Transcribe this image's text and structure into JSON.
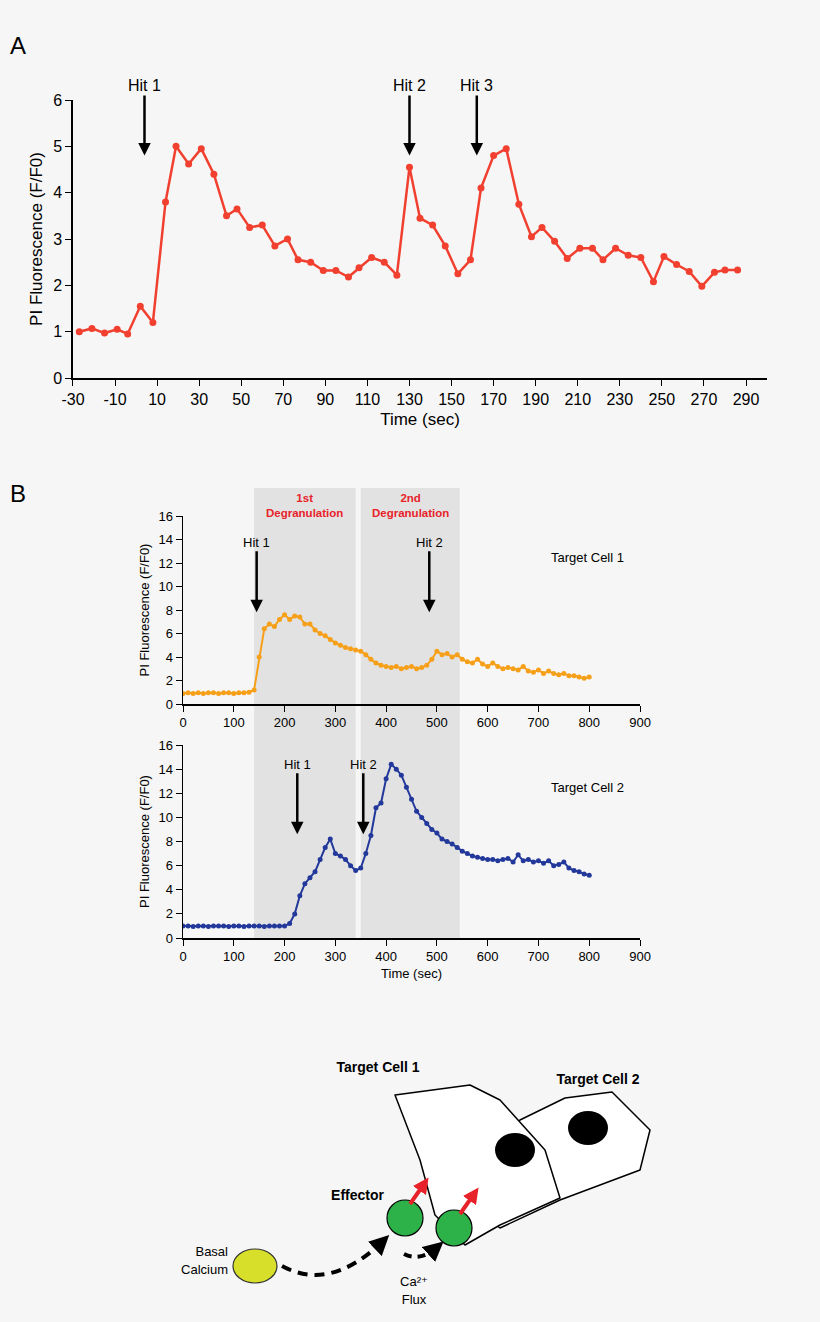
{
  "chart_data": [
    {
      "type": "line",
      "panel_label": "A",
      "marker": "circle",
      "grid": false,
      "xlabel": "Time (sec)",
      "ylabel": "PI Fluorescence (F/F0)",
      "xlim": [
        -30,
        300
      ],
      "xticks": [
        -30,
        -10,
        10,
        30,
        50,
        70,
        90,
        110,
        130,
        150,
        170,
        190,
        210,
        230,
        250,
        270,
        290
      ],
      "ylim": [
        0,
        6
      ],
      "yticks": [
        0,
        1,
        2,
        3,
        4,
        5,
        6
      ],
      "x": [
        -27,
        -21,
        -15,
        -9,
        -4,
        2,
        8,
        14,
        19,
        25,
        31,
        37,
        43,
        48,
        54,
        60,
        66,
        72,
        77,
        83,
        89,
        95,
        101,
        106,
        112,
        118,
        124,
        130,
        135,
        141,
        147,
        153,
        159,
        164,
        170,
        176,
        182,
        188,
        193,
        199,
        205,
        211,
        217,
        222,
        228,
        234,
        240,
        246,
        251,
        257,
        263,
        269,
        275,
        280,
        286
      ],
      "series": [
        {
          "color": "#f1402f",
          "values": [
            1.0,
            1.07,
            0.97,
            1.05,
            0.95,
            1.55,
            1.2,
            3.8,
            5.0,
            4.62,
            4.95,
            4.4,
            3.5,
            3.65,
            3.25,
            3.3,
            2.85,
            3.0,
            2.55,
            2.5,
            2.32,
            2.32,
            2.18,
            2.38,
            2.6,
            2.5,
            2.22,
            4.55,
            3.45,
            3.3,
            2.85,
            2.25,
            2.55,
            4.1,
            4.8,
            4.95,
            3.75,
            3.05,
            3.25,
            2.95,
            2.58,
            2.8,
            2.8,
            2.55,
            2.8,
            2.65,
            2.6,
            2.08,
            2.62,
            2.45,
            2.3,
            1.98,
            2.28,
            2.33,
            2.33
          ]
        }
      ],
      "annotations": [
        {
          "text": "Hit 1",
          "x": 4,
          "y": 4.8
        },
        {
          "text": "Hit 2",
          "x": 130,
          "y": 4.8
        },
        {
          "text": "Hit 3",
          "x": 162,
          "y": 4.8
        }
      ]
    },
    {
      "type": "line",
      "panel_label": "B",
      "marker": "circle",
      "grid": false,
      "ylabel": "PI Fluorescence (F/F0)",
      "xlim": [
        0,
        900
      ],
      "xticks": [
        0,
        100,
        200,
        300,
        400,
        500,
        600,
        700,
        800,
        900
      ],
      "ylim": [
        0,
        16
      ],
      "yticks": [
        0,
        2,
        4,
        6,
        8,
        10,
        12,
        14,
        16
      ],
      "x": [
        0,
        10,
        20,
        30,
        40,
        50,
        60,
        70,
        80,
        90,
        100,
        110,
        120,
        130,
        140,
        150,
        160,
        170,
        180,
        190,
        200,
        210,
        220,
        230,
        240,
        250,
        260,
        270,
        280,
        290,
        300,
        310,
        320,
        330,
        340,
        350,
        360,
        370,
        380,
        390,
        400,
        410,
        420,
        430,
        440,
        450,
        460,
        470,
        480,
        490,
        500,
        510,
        520,
        530,
        540,
        550,
        560,
        570,
        580,
        590,
        600,
        610,
        620,
        630,
        640,
        650,
        660,
        670,
        680,
        690,
        700,
        710,
        720,
        730,
        740,
        750,
        760,
        770,
        780,
        790,
        800
      ],
      "series": [
        {
          "name": "Target Cell 1",
          "color": "#f6a01a",
          "values": [
            0.9,
            0.95,
            0.9,
            0.95,
            0.9,
            0.95,
            0.95,
            0.9,
            0.95,
            0.95,
            0.9,
            0.95,
            0.95,
            1.0,
            1.2,
            4.0,
            6.4,
            6.8,
            6.6,
            7.2,
            7.6,
            7.2,
            7.5,
            7.4,
            6.8,
            6.8,
            6.3,
            6.0,
            5.8,
            5.5,
            5.2,
            5.0,
            4.8,
            4.7,
            4.6,
            4.5,
            4.2,
            3.8,
            3.5,
            3.3,
            3.2,
            3.1,
            3.2,
            3.0,
            3.1,
            3.2,
            3.0,
            3.1,
            3.3,
            3.8,
            4.5,
            4.2,
            4.3,
            4.0,
            4.2,
            3.8,
            3.6,
            3.5,
            3.8,
            3.4,
            3.2,
            3.5,
            3.2,
            3.0,
            3.1,
            3.0,
            2.9,
            3.2,
            2.8,
            2.7,
            2.9,
            2.6,
            2.8,
            2.6,
            2.5,
            2.6,
            2.4,
            2.4,
            2.3,
            2.2,
            2.3
          ]
        }
      ],
      "annotations": [
        {
          "text": "Hit 1",
          "x": 145,
          "y": 7.8
        },
        {
          "text": "Hit 2",
          "x": 485,
          "y": 7.8
        }
      ],
      "regions": [
        {
          "text": "1st Degranulation",
          "x0": 140,
          "x1": 340
        },
        {
          "text": "2nd Degranulation",
          "x0": 350,
          "x1": 545
        }
      ]
    },
    {
      "type": "line",
      "marker": "circle",
      "grid": false,
      "xlabel": "Time (sec)",
      "ylabel": "PI Fluorescence (F/F0)",
      "xlim": [
        0,
        900
      ],
      "xticks": [
        0,
        100,
        200,
        300,
        400,
        500,
        600,
        700,
        800,
        900
      ],
      "ylim": [
        0,
        16
      ],
      "yticks": [
        0,
        2,
        4,
        6,
        8,
        10,
        12,
        14,
        16
      ],
      "x": [
        0,
        10,
        20,
        30,
        40,
        50,
        60,
        70,
        80,
        90,
        100,
        110,
        120,
        130,
        140,
        150,
        160,
        170,
        180,
        190,
        200,
        210,
        220,
        230,
        240,
        250,
        260,
        270,
        280,
        290,
        300,
        310,
        320,
        330,
        340,
        350,
        360,
        370,
        380,
        390,
        400,
        410,
        420,
        430,
        440,
        450,
        460,
        470,
        480,
        490,
        500,
        510,
        520,
        530,
        540,
        550,
        560,
        570,
        580,
        590,
        600,
        610,
        620,
        630,
        640,
        650,
        660,
        670,
        680,
        690,
        700,
        710,
        720,
        730,
        740,
        750,
        760,
        770,
        780,
        790,
        800
      ],
      "series": [
        {
          "name": "Target Cell 2",
          "color": "#23389b",
          "values": [
            1.0,
            1.0,
            0.95,
            1.0,
            1.0,
            0.95,
            1.0,
            1.0,
            1.0,
            0.95,
            1.0,
            1.0,
            0.95,
            1.0,
            1.0,
            1.0,
            0.95,
            1.0,
            1.0,
            1.0,
            1.0,
            1.2,
            2.0,
            3.5,
            4.5,
            5.0,
            5.5,
            6.5,
            7.5,
            8.2,
            7.0,
            6.8,
            6.5,
            6.0,
            5.6,
            5.8,
            7.0,
            8.5,
            10.8,
            11.2,
            13.2,
            14.4,
            14.0,
            13.5,
            12.5,
            11.5,
            10.5,
            10.0,
            9.5,
            9.0,
            8.7,
            8.2,
            8.0,
            7.8,
            7.5,
            7.2,
            7.0,
            6.8,
            6.7,
            6.6,
            6.5,
            6.5,
            6.4,
            6.5,
            6.6,
            6.3,
            6.9,
            6.4,
            6.5,
            6.3,
            6.4,
            6.2,
            6.4,
            6.0,
            6.1,
            6.3,
            5.8,
            5.6,
            5.5,
            5.3,
            5.2
          ]
        }
      ],
      "annotations": [
        {
          "text": "Hit 1",
          "x": 225,
          "y": 8.6
        },
        {
          "text": "Hit 2",
          "x": 355,
          "y": 8.6
        }
      ]
    }
  ],
  "diagram": {
    "target_cells": [
      "Target Cell 1",
      "Target Cell 2"
    ],
    "effector": "Effector",
    "basal": "Basal Calcium",
    "flux": "Ca²⁺ Flux"
  }
}
